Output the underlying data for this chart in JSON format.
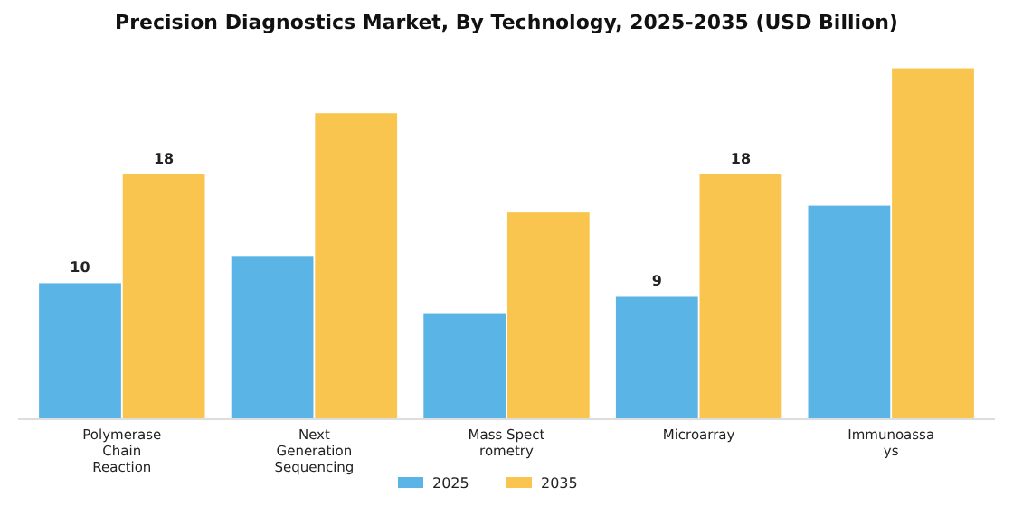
{
  "chart_data": {
    "type": "bar",
    "title": "Precision Diagnostics Market, By Technology, 2025-2035 (USD Billion)",
    "categories": [
      "Polymerase\nChain\nReaction",
      "Next\nGeneration\nSequencing",
      "Mass Spect\nrometry",
      "Microarray",
      "Immunoassa\nys"
    ],
    "series": [
      {
        "name": "2025",
        "color": "#5ab4e6",
        "values": [
          10,
          12,
          7.8,
          9,
          15.7
        ],
        "value_labels": [
          "10",
          null,
          null,
          "9",
          null
        ]
      },
      {
        "name": "2035",
        "color": "#f9c54e",
        "values": [
          18,
          22.5,
          15.2,
          18,
          25.8
        ],
        "value_labels": [
          "18",
          null,
          null,
          "18",
          null
        ]
      }
    ],
    "legend": "bottom"
  }
}
